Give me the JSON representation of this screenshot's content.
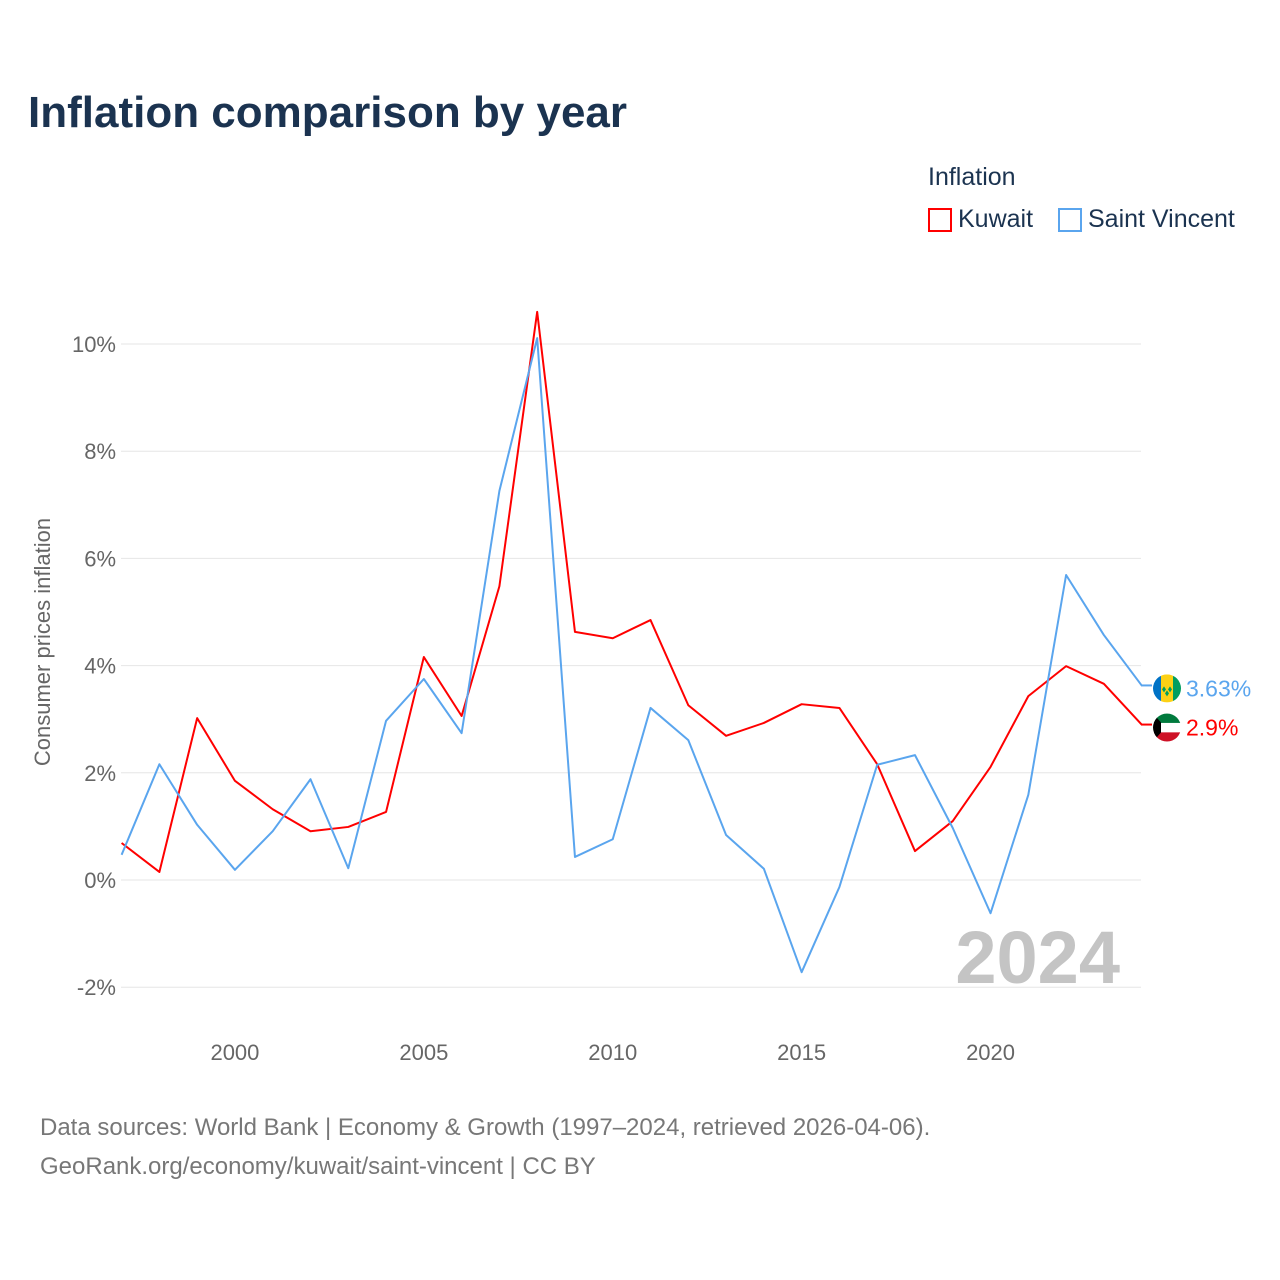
{
  "title": "Inflation comparison by year",
  "legend": {
    "title": "Inflation",
    "items": [
      {
        "name": "Kuwait",
        "color": "#ff0000"
      },
      {
        "name": "Saint Vincent",
        "color": "#5aa5ee"
      }
    ]
  },
  "source": {
    "line1": "Data sources: World Bank | Economy & Growth (1997–2024, retrieved 2026-04-06).",
    "line2": "GeoRank.org/economy/kuwait/saint-vincent | CC BY"
  },
  "chart_data": {
    "type": "line",
    "title": "Inflation comparison by year",
    "xlabel": "",
    "ylabel": "Consumer prices inflation",
    "year_watermark": "2024",
    "x": [
      1997,
      1998,
      1999,
      2000,
      2001,
      2002,
      2003,
      2004,
      2005,
      2006,
      2007,
      2008,
      2009,
      2010,
      2011,
      2012,
      2013,
      2014,
      2015,
      2016,
      2017,
      2018,
      2019,
      2020,
      2021,
      2022,
      2023,
      2024
    ],
    "xlim": [
      1997,
      2024
    ],
    "ylim": [
      -2.5,
      11
    ],
    "xticks": [
      2000,
      2005,
      2010,
      2015,
      2020
    ],
    "yticks": [
      -2,
      0,
      2,
      4,
      6,
      8,
      10
    ],
    "ytick_labels": [
      "-2%",
      "0%",
      "2%",
      "4%",
      "6%",
      "8%",
      "10%"
    ],
    "grid": true,
    "legend_position": "top-right",
    "series": [
      {
        "name": "Kuwait",
        "color": "#ff0000",
        "end_label": "2.9%",
        "values": [
          0.69,
          0.15,
          3.02,
          1.85,
          1.32,
          0.91,
          0.99,
          1.27,
          4.16,
          3.06,
          5.48,
          10.6,
          4.63,
          4.51,
          4.85,
          3.26,
          2.69,
          2.93,
          3.28,
          3.21,
          2.16,
          0.54,
          1.1,
          2.11,
          3.43,
          3.99,
          3.66,
          2.9
        ]
      },
      {
        "name": "Saint Vincent",
        "color": "#5aa5ee",
        "end_label": "3.63%",
        "values": [
          0.47,
          2.16,
          1.03,
          0.19,
          0.91,
          1.88,
          0.22,
          2.97,
          3.75,
          2.74,
          7.26,
          10.11,
          0.43,
          0.76,
          3.21,
          2.61,
          0.84,
          0.21,
          -1.72,
          -0.13,
          2.15,
          2.33,
          0.97,
          -0.62,
          1.59,
          5.69,
          4.57,
          3.63
        ]
      }
    ]
  }
}
